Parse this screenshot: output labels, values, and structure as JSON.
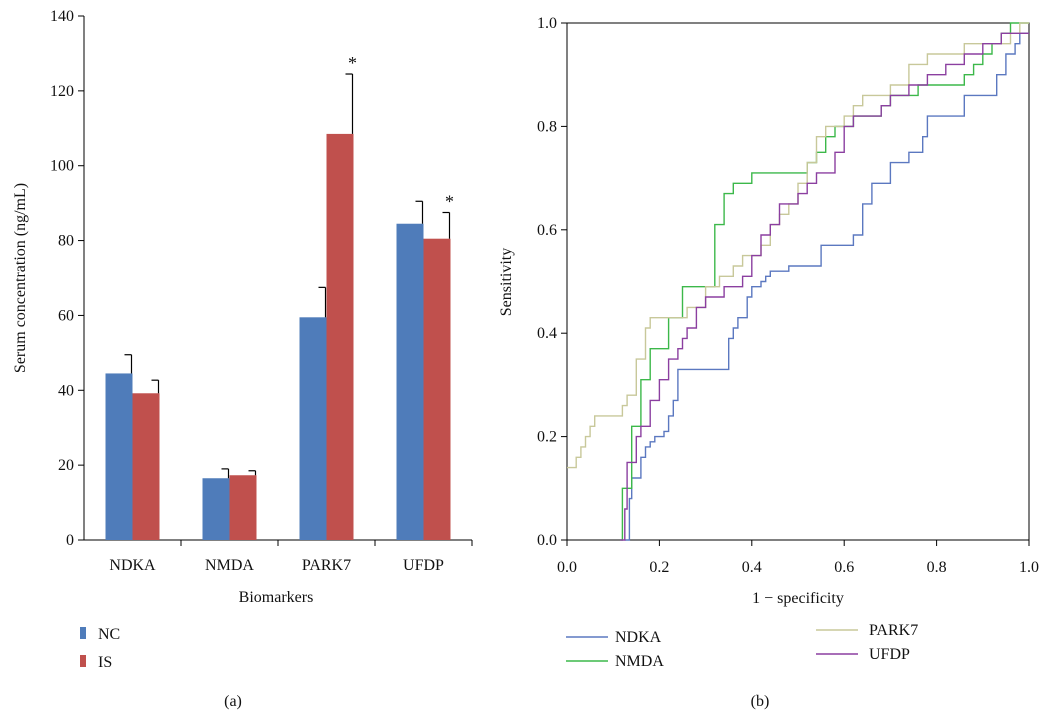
{
  "chart_data": [
    {
      "panel_label": "(a)",
      "type": "bar",
      "xlabel": "Biomarkers",
      "ylabel": "Serum concentration (ng/mL)",
      "ylim": [
        0,
        140
      ],
      "yticks": [
        0,
        20,
        40,
        60,
        80,
        100,
        120,
        140
      ],
      "categories": [
        "NDKA",
        "NMDA",
        "PARK7",
        "UFDP"
      ],
      "series": [
        {
          "name": "NC",
          "color": "#4f7cba",
          "values": [
            44.5,
            16.5,
            59.5,
            84.5
          ],
          "errors": [
            5,
            2.5,
            8,
            6
          ]
        },
        {
          "name": "IS",
          "color": "#c0504d",
          "values": [
            39.2,
            17.3,
            108.5,
            80.5
          ],
          "errors": [
            3.5,
            1.2,
            16,
            7
          ]
        }
      ],
      "annotations": [
        {
          "category": "PARK7",
          "series": "IS",
          "text": "*"
        },
        {
          "category": "UFDP",
          "series": "IS",
          "text": "*"
        }
      ],
      "legend_position": "bottom-left",
      "grid": false
    },
    {
      "panel_label": "(b)",
      "type": "line",
      "xlabel": "1 − specificity",
      "ylabel": "Sensitivity",
      "xlim": [
        0,
        1
      ],
      "ylim": [
        0,
        1
      ],
      "xticks": [
        "0.0",
        "0.2",
        "0.4",
        "0.6",
        "0.8",
        "1.0"
      ],
      "yticks": [
        "0.0",
        "0.2",
        "0.4",
        "0.6",
        "0.8",
        "1.0"
      ],
      "legend_position": "bottom",
      "grid": false,
      "series": [
        {
          "name": "NDKA",
          "color": "#5b78c0",
          "x": [
            0.125,
            0.135,
            0.14,
            0.16,
            0.17,
            0.18,
            0.19,
            0.21,
            0.22,
            0.23,
            0.24,
            0.34,
            0.35,
            0.36,
            0.37,
            0.39,
            0.4,
            0.42,
            0.43,
            0.44,
            0.46,
            0.48,
            0.52,
            0.55,
            0.6,
            0.62,
            0.63,
            0.64,
            0.66,
            0.68,
            0.7,
            0.72,
            0.74,
            0.77,
            0.78,
            0.79,
            0.8,
            0.83,
            0.86,
            0.9,
            0.93,
            0.95,
            0.97,
            0.98,
            1.0
          ],
          "y": [
            0.0,
            0.08,
            0.12,
            0.16,
            0.18,
            0.19,
            0.2,
            0.21,
            0.24,
            0.27,
            0.33,
            0.33,
            0.39,
            0.41,
            0.43,
            0.47,
            0.49,
            0.5,
            0.51,
            0.52,
            0.52,
            0.53,
            0.53,
            0.57,
            0.57,
            0.59,
            0.59,
            0.65,
            0.69,
            0.69,
            0.73,
            0.73,
            0.75,
            0.78,
            0.82,
            0.82,
            0.82,
            0.82,
            0.86,
            0.86,
            0.9,
            0.94,
            0.96,
            0.98,
            0.98
          ]
        },
        {
          "name": "NMDA",
          "color": "#3cb84a",
          "x": [
            0.115,
            0.12,
            0.14,
            0.16,
            0.18,
            0.2,
            0.22,
            0.24,
            0.25,
            0.28,
            0.3,
            0.32,
            0.33,
            0.34,
            0.35,
            0.36,
            0.38,
            0.4,
            0.42,
            0.5,
            0.52,
            0.54,
            0.56,
            0.58,
            0.6,
            0.62,
            0.64,
            0.66,
            0.68,
            0.7,
            0.72,
            0.74,
            0.76,
            0.8,
            0.82,
            0.84,
            0.86,
            0.88,
            0.9,
            0.92,
            0.94,
            0.96,
            0.98,
            1.0
          ],
          "y": [
            0.0,
            0.1,
            0.22,
            0.31,
            0.37,
            0.37,
            0.43,
            0.43,
            0.49,
            0.49,
            0.49,
            0.61,
            0.61,
            0.67,
            0.67,
            0.69,
            0.69,
            0.71,
            0.71,
            0.71,
            0.73,
            0.75,
            0.78,
            0.8,
            0.8,
            0.82,
            0.82,
            0.82,
            0.84,
            0.86,
            0.86,
            0.86,
            0.88,
            0.88,
            0.88,
            0.88,
            0.9,
            0.92,
            0.94,
            0.96,
            0.98,
            1.0,
            1.0,
            1.0
          ]
        },
        {
          "name": "PARK7",
          "color": "#c8c89a",
          "x": [
            0.0,
            0.02,
            0.03,
            0.04,
            0.05,
            0.06,
            0.07,
            0.09,
            0.1,
            0.12,
            0.13,
            0.14,
            0.15,
            0.17,
            0.18,
            0.22,
            0.24,
            0.26,
            0.3,
            0.33,
            0.36,
            0.38,
            0.4,
            0.42,
            0.44,
            0.46,
            0.48,
            0.5,
            0.52,
            0.54,
            0.56,
            0.58,
            0.6,
            0.62,
            0.64,
            0.66,
            0.68,
            0.7,
            0.74,
            0.78,
            0.82,
            0.86,
            0.9,
            0.94,
            0.96,
            0.98,
            1.0
          ],
          "y": [
            0.14,
            0.16,
            0.18,
            0.2,
            0.22,
            0.24,
            0.24,
            0.24,
            0.24,
            0.26,
            0.28,
            0.28,
            0.35,
            0.41,
            0.43,
            0.43,
            0.43,
            0.45,
            0.49,
            0.51,
            0.53,
            0.55,
            0.55,
            0.57,
            0.61,
            0.63,
            0.65,
            0.69,
            0.73,
            0.78,
            0.8,
            0.8,
            0.82,
            0.84,
            0.86,
            0.86,
            0.86,
            0.88,
            0.92,
            0.94,
            0.94,
            0.96,
            0.96,
            0.96,
            0.98,
            1.0,
            1.0
          ]
        },
        {
          "name": "UFDP",
          "color": "#8b3fa0",
          "x": [
            0.115,
            0.125,
            0.13,
            0.15,
            0.16,
            0.17,
            0.18,
            0.2,
            0.22,
            0.24,
            0.25,
            0.26,
            0.28,
            0.3,
            0.34,
            0.36,
            0.38,
            0.4,
            0.42,
            0.44,
            0.46,
            0.5,
            0.52,
            0.54,
            0.56,
            0.58,
            0.6,
            0.62,
            0.64,
            0.66,
            0.68,
            0.7,
            0.74,
            0.78,
            0.82,
            0.86,
            0.9,
            0.92,
            0.94,
            0.96,
            0.98,
            1.0
          ],
          "y": [
            0.0,
            0.06,
            0.15,
            0.2,
            0.22,
            0.22,
            0.27,
            0.31,
            0.35,
            0.37,
            0.39,
            0.41,
            0.45,
            0.47,
            0.49,
            0.49,
            0.51,
            0.55,
            0.59,
            0.61,
            0.65,
            0.67,
            0.69,
            0.71,
            0.71,
            0.75,
            0.8,
            0.82,
            0.82,
            0.82,
            0.84,
            0.86,
            0.88,
            0.9,
            0.92,
            0.94,
            0.96,
            0.96,
            0.98,
            0.98,
            0.98,
            0.98
          ]
        }
      ]
    }
  ]
}
